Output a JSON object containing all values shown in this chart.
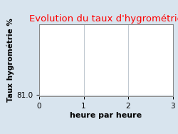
{
  "title": "Evolution du taux d'hygrométrie",
  "title_color": "#ff0000",
  "xlabel": "heure par heure",
  "ylabel": "Taux hygrométrie %",
  "background_color": "#d8e4ee",
  "plot_background_color": "#ffffff",
  "xlim": [
    0,
    3
  ],
  "ylim_min": 81.0,
  "ylim_max": 81.5,
  "xticks": [
    0,
    1,
    2,
    3
  ],
  "yticks": [
    81.0
  ],
  "grid_color": "#c0c8d0",
  "title_fontsize": 9.5,
  "xlabel_fontsize": 8,
  "ylabel_fontsize": 7.5,
  "tick_fontsize": 7.5
}
